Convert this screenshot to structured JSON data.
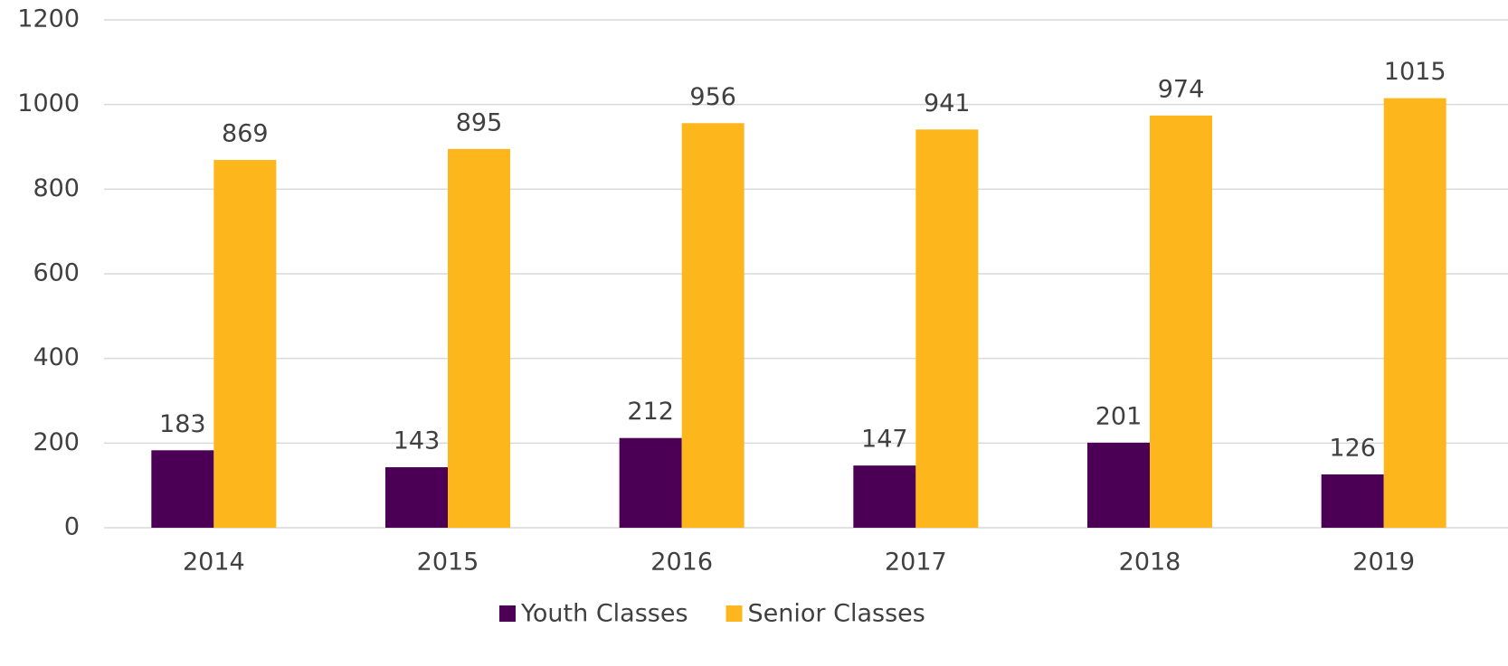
{
  "chart_data": {
    "type": "bar",
    "categories": [
      "2014",
      "2015",
      "2016",
      "2017",
      "2018",
      "2019"
    ],
    "series": [
      {
        "name": "Youth Classes",
        "color": "#4b0055",
        "values": [
          183,
          143,
          212,
          147,
          201,
          126
        ]
      },
      {
        "name": "Senior Classes",
        "color": "#fdb71c",
        "values": [
          869,
          895,
          956,
          941,
          974,
          1015
        ]
      }
    ],
    "ylim": [
      0,
      1200
    ],
    "yticks": [
      0,
      200,
      400,
      600,
      800,
      1000,
      1200
    ],
    "grid": true,
    "legend": "bottom",
    "data_labels": true
  }
}
